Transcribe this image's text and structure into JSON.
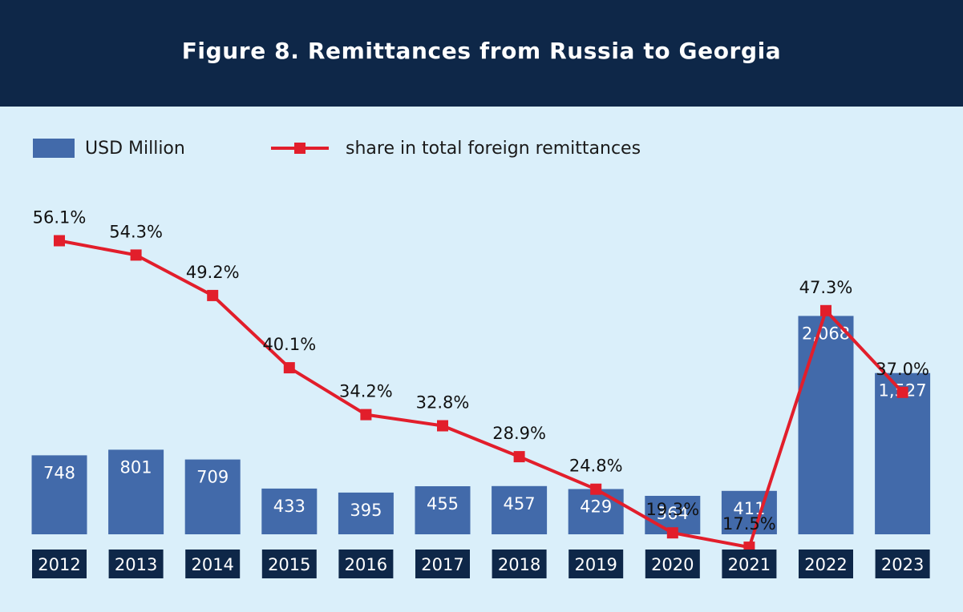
{
  "title": "Figure 8. Remittances from Russia to Georgia",
  "colors": {
    "header_bg": "#0e2748",
    "background": "#daeffa",
    "bar": "#426aaa",
    "line": "#e21e2b",
    "year_box": "#0e2748"
  },
  "chart_data": {
    "type": "bar",
    "categories": [
      "2012",
      "2013",
      "2014",
      "2015",
      "2016",
      "2017",
      "2018",
      "2019",
      "2020",
      "2021",
      "2022",
      "2023"
    ],
    "series": [
      {
        "name": "USD Million",
        "type": "bar",
        "values": [
          748,
          801,
          709,
          433,
          395,
          455,
          457,
          429,
          364,
          411,
          2068,
          1527
        ],
        "labels": [
          "748",
          "801",
          "709",
          "433",
          "395",
          "455",
          "457",
          "429",
          "364",
          "411",
          "2,068",
          "1,527"
        ]
      },
      {
        "name": "share in total foreign remittances",
        "type": "line",
        "values": [
          56.1,
          54.3,
          49.2,
          40.1,
          34.2,
          32.8,
          28.9,
          24.8,
          19.3,
          17.5,
          47.3,
          37.0
        ],
        "labels": [
          "56.1%",
          "54.3%",
          "49.2%",
          "40.1%",
          "34.2%",
          "32.8%",
          "28.9%",
          "24.8%",
          "19.3%",
          "17.5%",
          "47.3%",
          "37.0%"
        ]
      }
    ],
    "legend_position": "top-left",
    "grid": false
  }
}
